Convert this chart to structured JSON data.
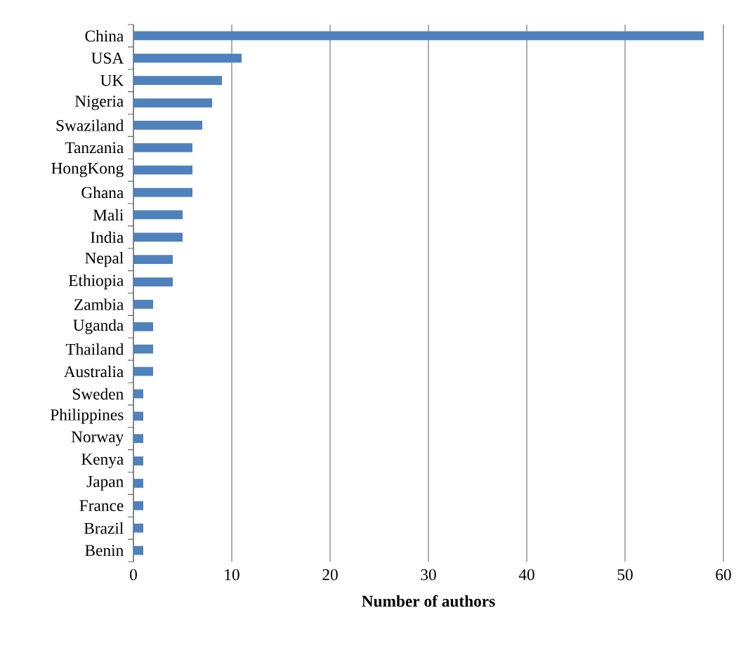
{
  "chart_data": {
    "type": "bar",
    "orientation": "horizontal",
    "xlabel": "Number of authors",
    "categories": [
      "China",
      "USA",
      "UK",
      "Nigeria",
      "Swaziland",
      "Tanzania",
      "HongKong",
      "Ghana",
      "Mali",
      "India",
      "Nepal",
      "Ethiopia",
      "Zambia",
      "Uganda",
      "Thailand",
      "Australia",
      "Sweden",
      "Philippines",
      "Norway",
      "Kenya",
      "Japan",
      "France",
      "Brazil",
      "Benin"
    ],
    "values": [
      58,
      11,
      9,
      8,
      7,
      6,
      6,
      6,
      5,
      5,
      4,
      4,
      2,
      2,
      2,
      2,
      1,
      1,
      1,
      1,
      1,
      1,
      1,
      1
    ],
    "color": "#4f81bd",
    "xlim": [
      0,
      60
    ],
    "xticks": [
      0,
      10,
      20,
      30,
      40,
      50,
      60
    ],
    "grid": "x"
  }
}
